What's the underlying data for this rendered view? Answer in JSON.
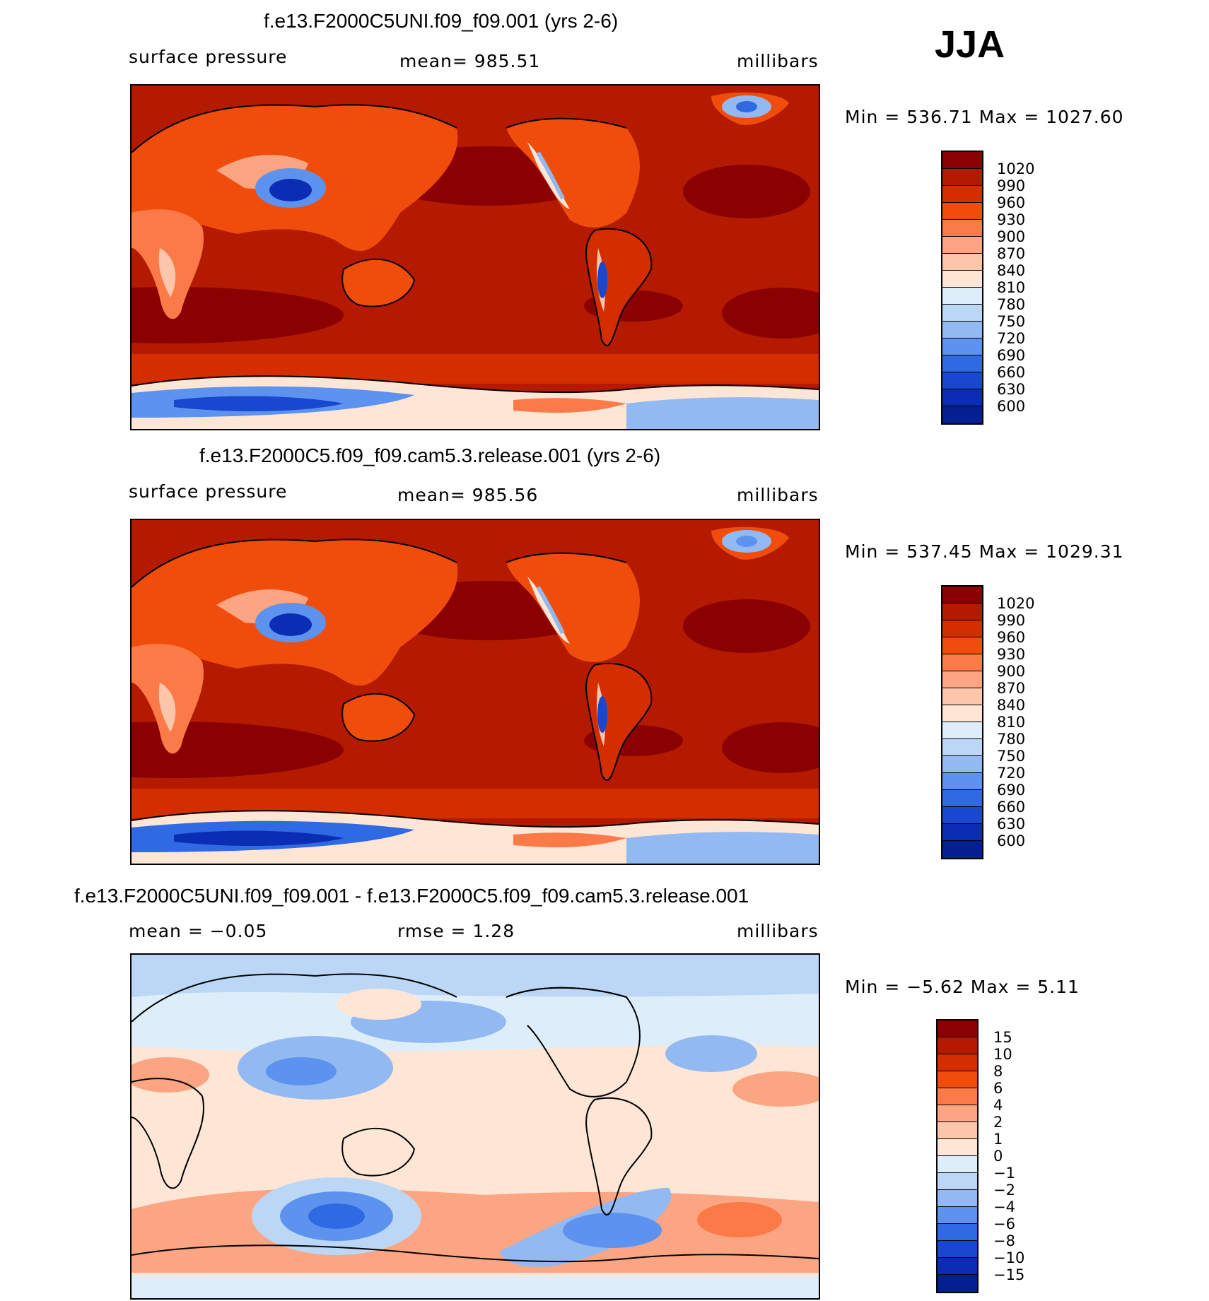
{
  "season": "JJA",
  "palettes": {
    "abs": [
      "#8b0000",
      "#b31a00",
      "#d42e00",
      "#f04d0d",
      "#fb7a47",
      "#fca582",
      "#fdc6aa",
      "#fde6d6",
      "#ddeefa",
      "#bcd7f5",
      "#93b9f3",
      "#5d93ee",
      "#2f69e3",
      "#1748cf",
      "#0a2db3",
      "#041f8f"
    ],
    "diff": [
      "#8b0000",
      "#b31a00",
      "#d42e00",
      "#f04d0d",
      "#fb7a47",
      "#fca582",
      "#fdc6aa",
      "#fde6d6",
      "#ddeefa",
      "#bcd7f5",
      "#93b9f3",
      "#5d93ee",
      "#2f69e3",
      "#1748cf",
      "#0a2db3",
      "#041f8f"
    ]
  },
  "panels": [
    {
      "id": "case1",
      "title": "f.e13.F2000C5UNI.f09_f09.001 (yrs 2-6)",
      "left": "surface pressure",
      "center": "mean= 985.51",
      "right": "millibars",
      "minmax": "Min  =  536.71  Max  =  1027.60",
      "levels": [
        "1020",
        "990",
        "960",
        "930",
        "900",
        "870",
        "840",
        "810",
        "780",
        "750",
        "720",
        "690",
        "660",
        "630",
        "600"
      ]
    },
    {
      "id": "case2",
      "title": "f.e13.F2000C5.f09_f09.cam5.3.release.001 (yrs 2-6)",
      "left": "surface pressure",
      "center": "mean= 985.56",
      "right": "millibars",
      "minmax": "Min  =  537.45  Max  =  1029.31",
      "levels": [
        "1020",
        "990",
        "960",
        "930",
        "900",
        "870",
        "840",
        "810",
        "780",
        "750",
        "720",
        "690",
        "660",
        "630",
        "600"
      ]
    },
    {
      "id": "diff",
      "title": "f.e13.F2000C5UNI.f09_f09.001 - f.e13.F2000C5.f09_f09.cam5.3.release.001",
      "left": "mean  =   −0.05",
      "center": "rmse  =      1.28",
      "right": "millibars",
      "minmax": "Min  =     −5.62  Max  =      5.11",
      "levels": [
        "15",
        "10",
        "8",
        "6",
        "4",
        "2",
        "1",
        "0",
        "−1",
        "−2",
        "−4",
        "−6",
        "−8",
        "−10",
        "−15"
      ]
    }
  ],
  "chart_data": [
    {
      "type": "heatmap",
      "title": "f.e13.F2000C5UNI.f09_f09.001 (yrs 2-6)",
      "variable": "surface pressure",
      "units": "millibars",
      "mean": 985.51,
      "min": 536.71,
      "max": 1027.6,
      "contour_levels": [
        600,
        630,
        660,
        690,
        720,
        750,
        780,
        810,
        840,
        870,
        900,
        930,
        960,
        990,
        1020
      ]
    },
    {
      "type": "heatmap",
      "title": "f.e13.F2000C5.f09_f09.cam5.3.release.001 (yrs 2-6)",
      "variable": "surface pressure",
      "units": "millibars",
      "mean": 985.56,
      "min": 537.45,
      "max": 1029.31,
      "contour_levels": [
        600,
        630,
        660,
        690,
        720,
        750,
        780,
        810,
        840,
        870,
        900,
        930,
        960,
        990,
        1020
      ]
    },
    {
      "type": "heatmap",
      "title": "f.e13.F2000C5UNI.f09_f09.001 - f.e13.F2000C5.f09_f09.cam5.3.release.001",
      "units": "millibars",
      "mean": -0.05,
      "rmse": 1.28,
      "min": -5.62,
      "max": 5.11,
      "contour_levels": [
        -15,
        -10,
        -8,
        -6,
        -4,
        -2,
        -1,
        0,
        1,
        2,
        4,
        6,
        8,
        10,
        15
      ]
    }
  ]
}
